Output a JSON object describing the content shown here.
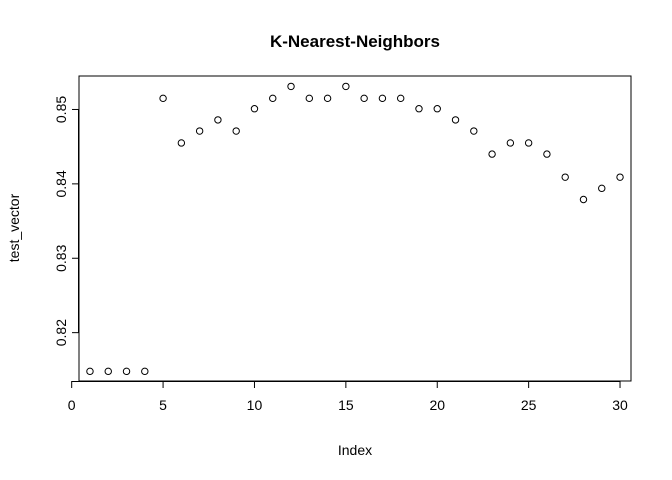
{
  "chart_data": {
    "type": "scatter",
    "title": "K-Nearest-Neighbors",
    "xlabel": "Index",
    "ylabel": "test_vector",
    "xlim": [
      0.4,
      30.6
    ],
    "ylim": [
      0.8135,
      0.8545
    ],
    "x_ticks": [
      0,
      5,
      10,
      15,
      20,
      25,
      30
    ],
    "y_ticks": [
      0.82,
      0.83,
      0.84,
      0.85
    ],
    "grid": false,
    "x": [
      1,
      2,
      3,
      4,
      5,
      6,
      7,
      8,
      9,
      10,
      11,
      12,
      13,
      14,
      15,
      16,
      17,
      18,
      19,
      20,
      21,
      22,
      23,
      24,
      25,
      26,
      27,
      28,
      29,
      30
    ],
    "y": [
      0.8148,
      0.8148,
      0.8148,
      0.8148,
      0.8515,
      0.8455,
      0.8471,
      0.8486,
      0.8471,
      0.8501,
      0.8515,
      0.8531,
      0.8515,
      0.8515,
      0.8531,
      0.8515,
      0.8515,
      0.8515,
      0.8501,
      0.8501,
      0.8486,
      0.8471,
      0.844,
      0.8455,
      0.8455,
      0.844,
      0.8409,
      0.8379,
      0.8394,
      0.8409
    ]
  }
}
